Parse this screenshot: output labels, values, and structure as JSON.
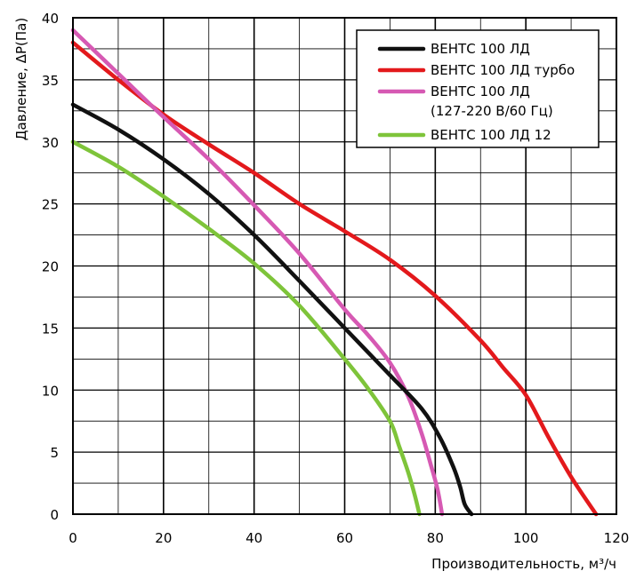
{
  "chart_data": {
    "type": "line",
    "xlabel": "Производительность, м³/ч",
    "ylabel": "Давление, ΔР(Па)",
    "xlim": [
      0,
      120
    ],
    "ylim": [
      0,
      40
    ],
    "x_ticks": [
      "0",
      "20",
      "40",
      "60",
      "80",
      "100",
      "120"
    ],
    "y_ticks": [
      "0",
      "5",
      "10",
      "15",
      "20",
      "25",
      "30",
      "35",
      "40"
    ],
    "grid": true,
    "legend_position": "top-right",
    "series": [
      {
        "name": "ВЕНТС 100 ЛД",
        "color": "#111111",
        "x": [
          0,
          10,
          20,
          30,
          40,
          50,
          60,
          70,
          77,
          81,
          84,
          85.5,
          86.5,
          88
        ],
        "y": [
          33,
          31,
          28.6,
          25.8,
          22.5,
          18.8,
          15,
          11.2,
          8.5,
          6.2,
          3.8,
          2.2,
          0.8,
          0
        ]
      },
      {
        "name": "ВЕНТС 100 ЛД турбо",
        "color": "#e3191c",
        "x": [
          0,
          10,
          20,
          30,
          40,
          50,
          60,
          70,
          80,
          90,
          95,
          100,
          105,
          110,
          115.5
        ],
        "y": [
          38,
          35,
          32.2,
          29.8,
          27.5,
          25,
          22.8,
          20.5,
          17.6,
          14,
          11.8,
          9.6,
          6.2,
          3,
          0
        ]
      },
      {
        "name": "ВЕНТС 100 ЛД\n(127-220 В/60 Гц)",
        "color": "#d659b3",
        "x": [
          0,
          10,
          20,
          30,
          40,
          50,
          60,
          65,
          70,
          74,
          77,
          79,
          80.5,
          81.5
        ],
        "y": [
          39,
          35.5,
          32,
          28.6,
          24.9,
          21,
          16.5,
          14.5,
          12.2,
          9.5,
          6.5,
          4,
          2,
          0
        ]
      },
      {
        "name": "ВЕНТС 100 ЛД 12",
        "color": "#7ec43a",
        "x": [
          0,
          10,
          20,
          30,
          40,
          50,
          60,
          65,
          70,
          72,
          74,
          75.5,
          76.5
        ],
        "y": [
          30,
          28,
          25.6,
          23,
          20.2,
          16.8,
          12.5,
          10.2,
          7.5,
          5.5,
          3.4,
          1.5,
          0
        ]
      }
    ]
  }
}
